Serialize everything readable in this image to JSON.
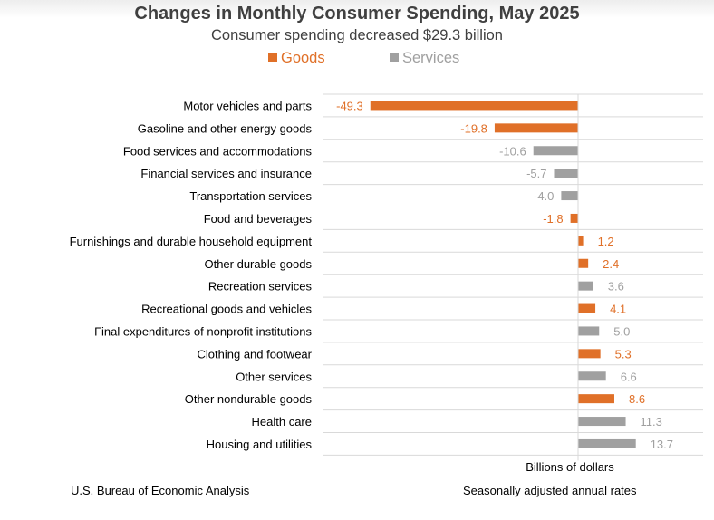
{
  "chart_data": {
    "type": "bar",
    "orientation": "horizontal",
    "title": "Changes in Monthly Consumer Spending, May 2025",
    "subtitle": "Consumer spending decreased $29.3 billion",
    "xlabel": "Billions of dollars",
    "xlim": [
      -52,
      50
    ],
    "legend": [
      {
        "name": "Goods",
        "color": "#e07028"
      },
      {
        "name": "Services",
        "color": "#a0a0a0"
      }
    ],
    "categories": [
      "Motor vehicles and parts",
      "Gasoline and other energy goods",
      "Food services and accommodations",
      "Financial services and insurance",
      "Transportation services",
      "Food and beverages",
      "Furnishings and durable household equipment",
      "Other durable goods",
      "Recreation services",
      "Recreational goods and vehicles",
      "Final expenditures of nonprofit institutions",
      "Clothing and footwear",
      "Other services",
      "Other nondurable goods",
      "Health care",
      "Housing and utilities"
    ],
    "values": [
      -49.3,
      -19.8,
      -10.6,
      -5.7,
      -4.0,
      -1.8,
      1.2,
      2.4,
      3.6,
      4.1,
      5.0,
      5.3,
      6.6,
      8.6,
      11.3,
      13.7
    ],
    "value_labels": [
      "-49.3",
      "-19.8",
      "-10.6",
      "-5.7",
      "-4.0",
      "-1.8",
      "1.2",
      "2.4",
      "3.6",
      "4.1",
      "5.0",
      "5.3",
      "6.6",
      "8.6",
      "11.3",
      "13.7"
    ],
    "groups": [
      "Goods",
      "Goods",
      "Services",
      "Services",
      "Services",
      "Goods",
      "Goods",
      "Goods",
      "Services",
      "Goods",
      "Services",
      "Goods",
      "Services",
      "Goods",
      "Services",
      "Services"
    ]
  },
  "footer": {
    "source": "U.S. Bureau of Economic Analysis",
    "note": "Seasonally adjusted annual rates"
  }
}
